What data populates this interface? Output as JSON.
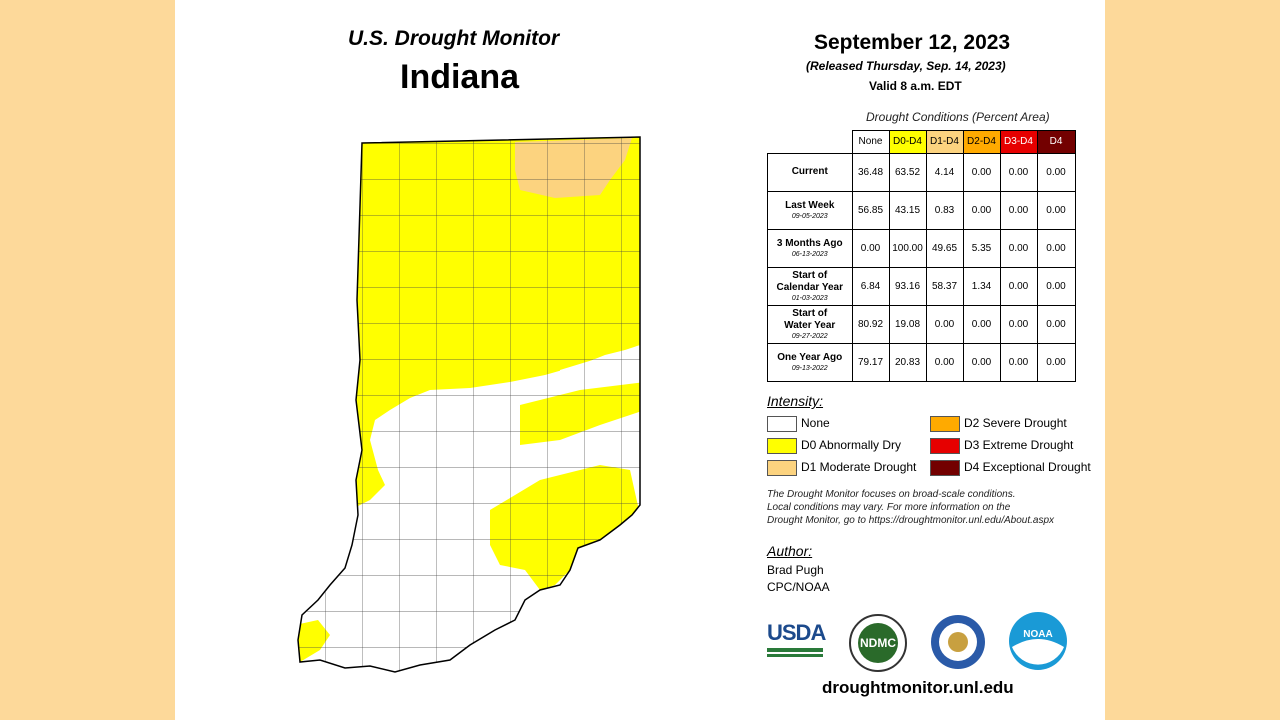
{
  "header": {
    "program": "U.S. Drought Monitor",
    "state": "Indiana",
    "date": "September 12, 2023",
    "released": "(Released Thursday, Sep. 14, 2023)",
    "valid": "Valid 8 a.m. EDT"
  },
  "table": {
    "caption": "Drought Conditions (Percent Area)",
    "columns": [
      {
        "label": "None",
        "color": "#ffffff",
        "text": "#000000"
      },
      {
        "label": "D0-D4",
        "color": "#ffff00",
        "text": "#000000"
      },
      {
        "label": "D1-D4",
        "color": "#fcd37f",
        "text": "#000000"
      },
      {
        "label": "D2-D4",
        "color": "#ffaa00",
        "text": "#000000"
      },
      {
        "label": "D3-D4",
        "color": "#e60000",
        "text": "#ffffff"
      },
      {
        "label": "D4",
        "color": "#730000",
        "text": "#ffffff"
      }
    ],
    "rows": [
      {
        "label": [
          "Current"
        ],
        "values": [
          "36.48",
          "63.52",
          "4.14",
          "0.00",
          "0.00",
          "0.00"
        ]
      },
      {
        "label": [
          "Last Week"
        ],
        "date": "09-05-2023",
        "values": [
          "56.85",
          "43.15",
          "0.83",
          "0.00",
          "0.00",
          "0.00"
        ]
      },
      {
        "label": [
          "3 Months Ago"
        ],
        "date": "06-13-2023",
        "values": [
          "0.00",
          "100.00",
          "49.65",
          "5.35",
          "0.00",
          "0.00"
        ]
      },
      {
        "label": [
          "Start of",
          "Calendar Year"
        ],
        "date": "01-03-2023",
        "values": [
          "6.84",
          "93.16",
          "58.37",
          "1.34",
          "0.00",
          "0.00"
        ]
      },
      {
        "label": [
          "Start of",
          "Water Year"
        ],
        "date": "09-27-2022",
        "values": [
          "80.92",
          "19.08",
          "0.00",
          "0.00",
          "0.00",
          "0.00"
        ]
      },
      {
        "label": [
          "One Year Ago"
        ],
        "date": "09-13-2022",
        "values": [
          "79.17",
          "20.83",
          "0.00",
          "0.00",
          "0.00",
          "0.00"
        ]
      }
    ]
  },
  "legend": {
    "title": "Intensity:",
    "items": [
      {
        "label": "None",
        "color": "#ffffff"
      },
      {
        "label": "D0 Abnormally Dry",
        "color": "#ffff00"
      },
      {
        "label": "D1 Moderate Drought",
        "color": "#fcd37f"
      },
      {
        "label": "D2 Severe Drought",
        "color": "#ffaa00"
      },
      {
        "label": "D3 Extreme Drought",
        "color": "#e60000"
      },
      {
        "label": "D4 Exceptional Drought",
        "color": "#730000"
      }
    ]
  },
  "notes": [
    "The Drought Monitor focuses on broad-scale conditions.",
    "Local conditions may vary. For more information on the",
    "Drought Monitor, go to https://droughtmonitor.unl.edu/About.aspx"
  ],
  "author": {
    "title": "Author:",
    "lines": [
      "Brad Pugh",
      "CPC/NOAA"
    ]
  },
  "logos": [
    "USDA",
    "NDMC",
    "NOAA"
  ],
  "url": "droughtmonitor.unl.edu"
}
